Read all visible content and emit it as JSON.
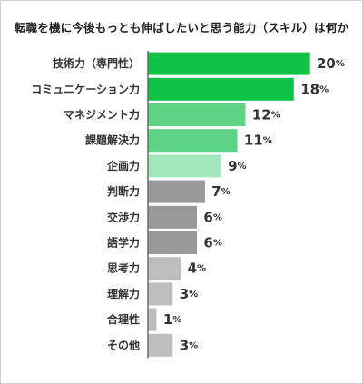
{
  "chart_data": {
    "type": "bar",
    "orientation": "horizontal",
    "title": "転職を機に今後もっとも伸ばしたいと思う能力（スキル）は何か",
    "categories": [
      "技術力（専門性）",
      "コミュニケーション力",
      "マネジメント力",
      "課題解決力",
      "企画力",
      "判断力",
      "交渉力",
      "語学力",
      "思考力",
      "理解力",
      "合理性",
      "その他"
    ],
    "values": [
      20,
      18,
      12,
      11,
      9,
      7,
      6,
      6,
      4,
      3,
      1,
      3
    ],
    "value_suffix": "%",
    "colors": [
      "#10c246",
      "#10c246",
      "#5dd385",
      "#5dd385",
      "#a3e8bd",
      "#999999",
      "#999999",
      "#999999",
      "#bdbdbd",
      "#bdbdbd",
      "#bdbdbd",
      "#bdbdbd"
    ],
    "xlim": [
      0,
      20
    ],
    "grid": false,
    "legend": "none"
  }
}
